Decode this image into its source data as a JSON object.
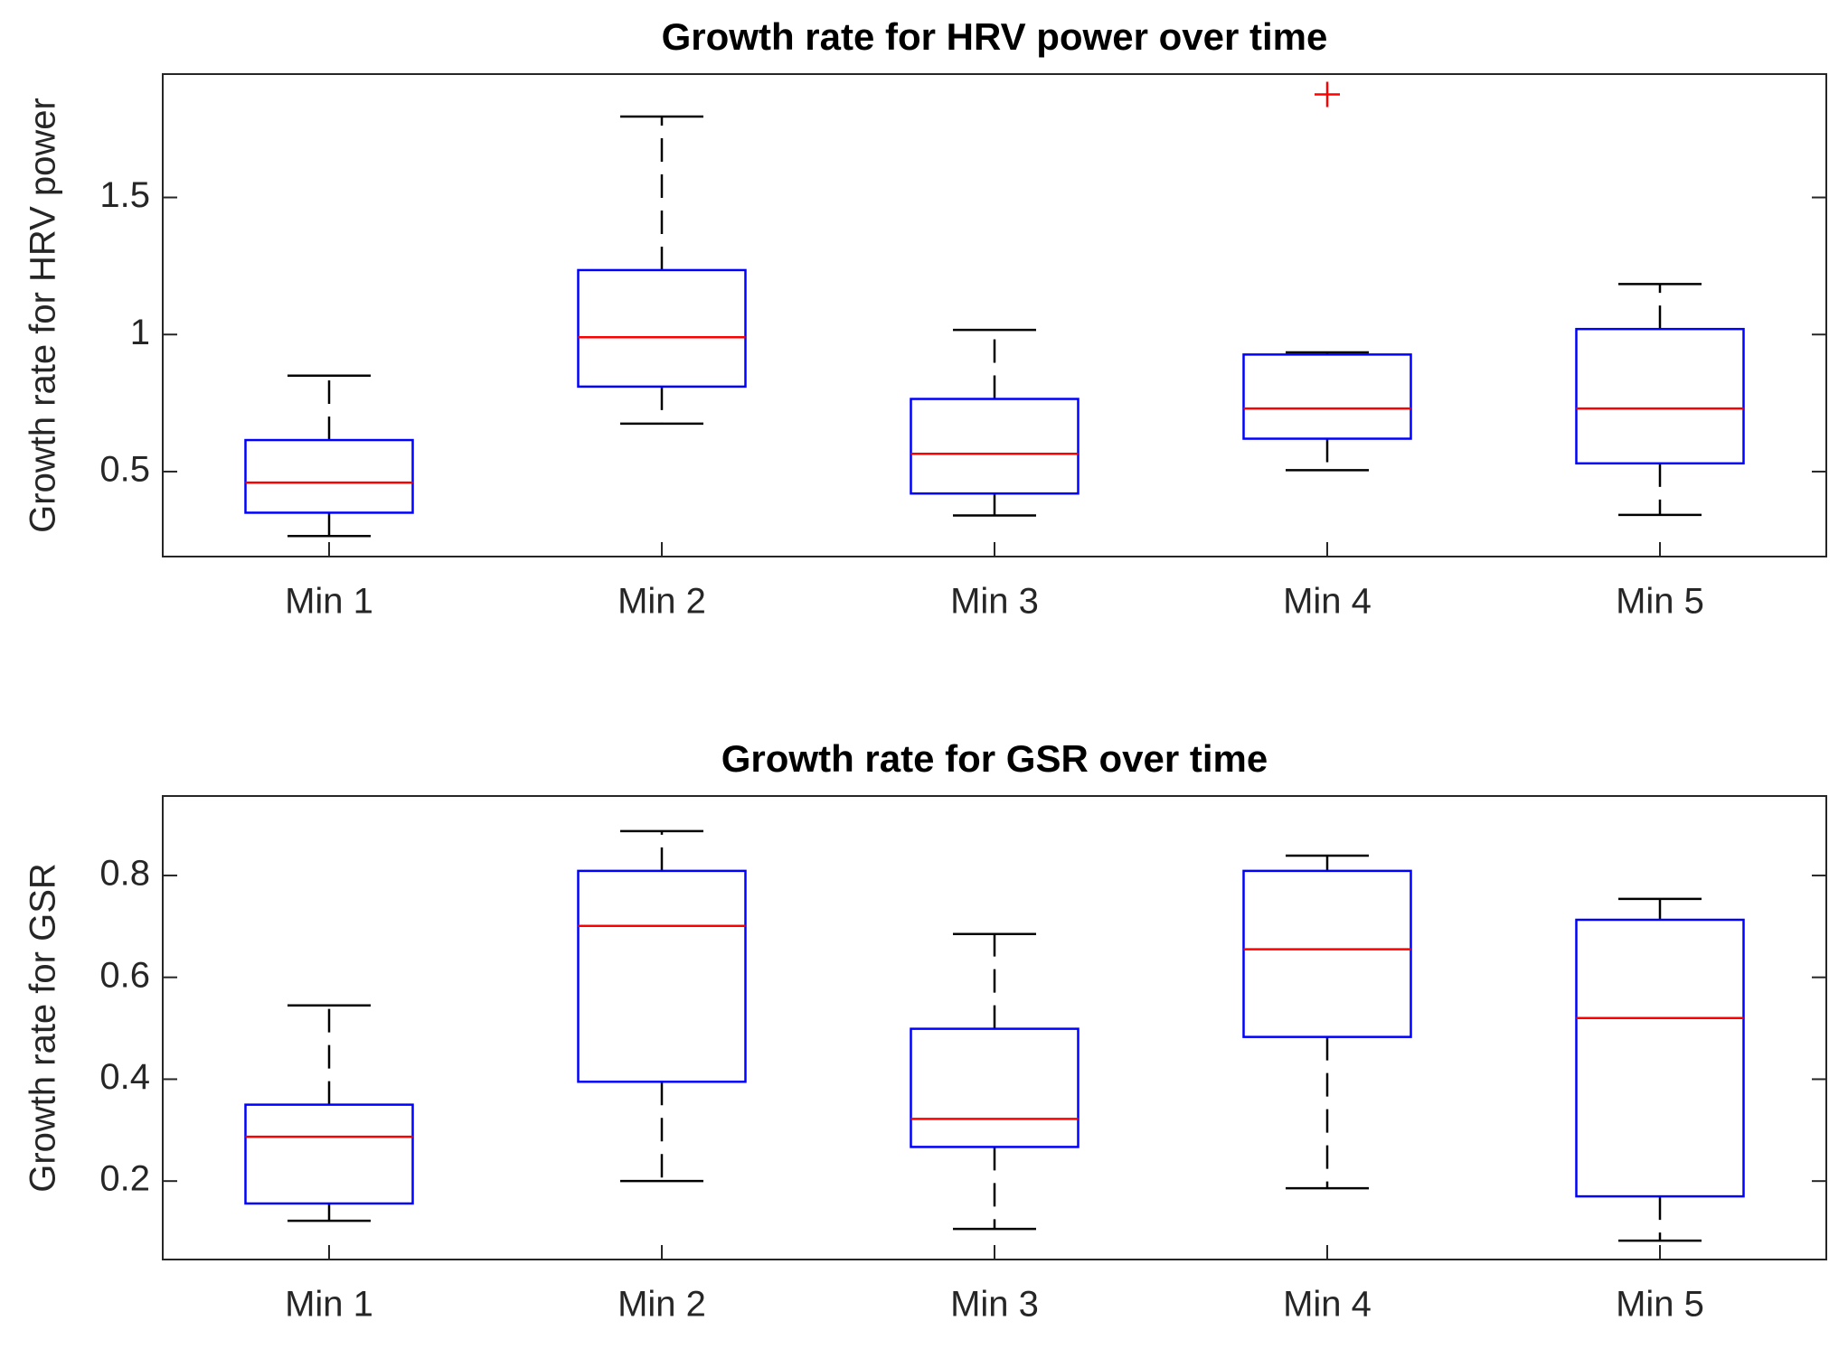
{
  "chart_data": [
    {
      "type": "box",
      "title": "Growth rate for HRV power over time",
      "y_label": "Growth rate for HRV power",
      "categories": [
        "Min 1",
        "Min 2",
        "Min 3",
        "Min 4",
        "Min 5"
      ],
      "boxes": [
        {
          "whisker_low": 0.265,
          "q1": 0.35,
          "median": 0.46,
          "q3": 0.615,
          "whisker_high": 0.85,
          "outliers": []
        },
        {
          "whisker_low": 0.675,
          "q1": 0.81,
          "median": 0.99,
          "q3": 1.235,
          "whisker_high": 1.795,
          "outliers": []
        },
        {
          "whisker_low": 0.34,
          "q1": 0.42,
          "median": 0.565,
          "q3": 0.765,
          "whisker_high": 1.017,
          "outliers": []
        },
        {
          "whisker_low": 0.505,
          "q1": 0.62,
          "median": 0.73,
          "q3": 0.927,
          "whisker_high": 0.935,
          "outliers": [
            1.876
          ]
        },
        {
          "whisker_low": 0.342,
          "q1": 0.53,
          "median": 0.73,
          "q3": 1.02,
          "whisker_high": 1.184,
          "outliers": []
        }
      ],
      "box_color": "#0000ff",
      "median_color": "#ff0000",
      "whisker_color": "#000000",
      "outlier_color": "#ff0000",
      "ylim": [
        0.19,
        1.95
      ],
      "yticks": [
        0.5,
        1,
        1.5
      ]
    },
    {
      "type": "box",
      "title": "Growth rate for GSR over time",
      "y_label": "Growth rate for GSR",
      "categories": [
        "Min 1",
        "Min 2",
        "Min 3",
        "Min 4",
        "Min 5"
      ],
      "boxes": [
        {
          "whisker_low": 0.122,
          "q1": 0.156,
          "median": 0.287,
          "q3": 0.35,
          "whisker_high": 0.545,
          "outliers": []
        },
        {
          "whisker_low": 0.2,
          "q1": 0.395,
          "median": 0.701,
          "q3": 0.809,
          "whisker_high": 0.887,
          "outliers": []
        },
        {
          "whisker_low": 0.106,
          "q1": 0.267,
          "median": 0.322,
          "q3": 0.499,
          "whisker_high": 0.685,
          "outliers": []
        },
        {
          "whisker_low": 0.186,
          "q1": 0.483,
          "median": 0.655,
          "q3": 0.809,
          "whisker_high": 0.839,
          "outliers": []
        },
        {
          "whisker_low": 0.083,
          "q1": 0.17,
          "median": 0.52,
          "q3": 0.713,
          "whisker_high": 0.754,
          "outliers": []
        }
      ],
      "box_color": "#0000ff",
      "median_color": "#ff0000",
      "whisker_color": "#000000",
      "outlier_color": "#ff0000",
      "ylim": [
        0.046,
        0.956
      ],
      "yticks": [
        0.2,
        0.4,
        0.6,
        0.8
      ]
    }
  ]
}
